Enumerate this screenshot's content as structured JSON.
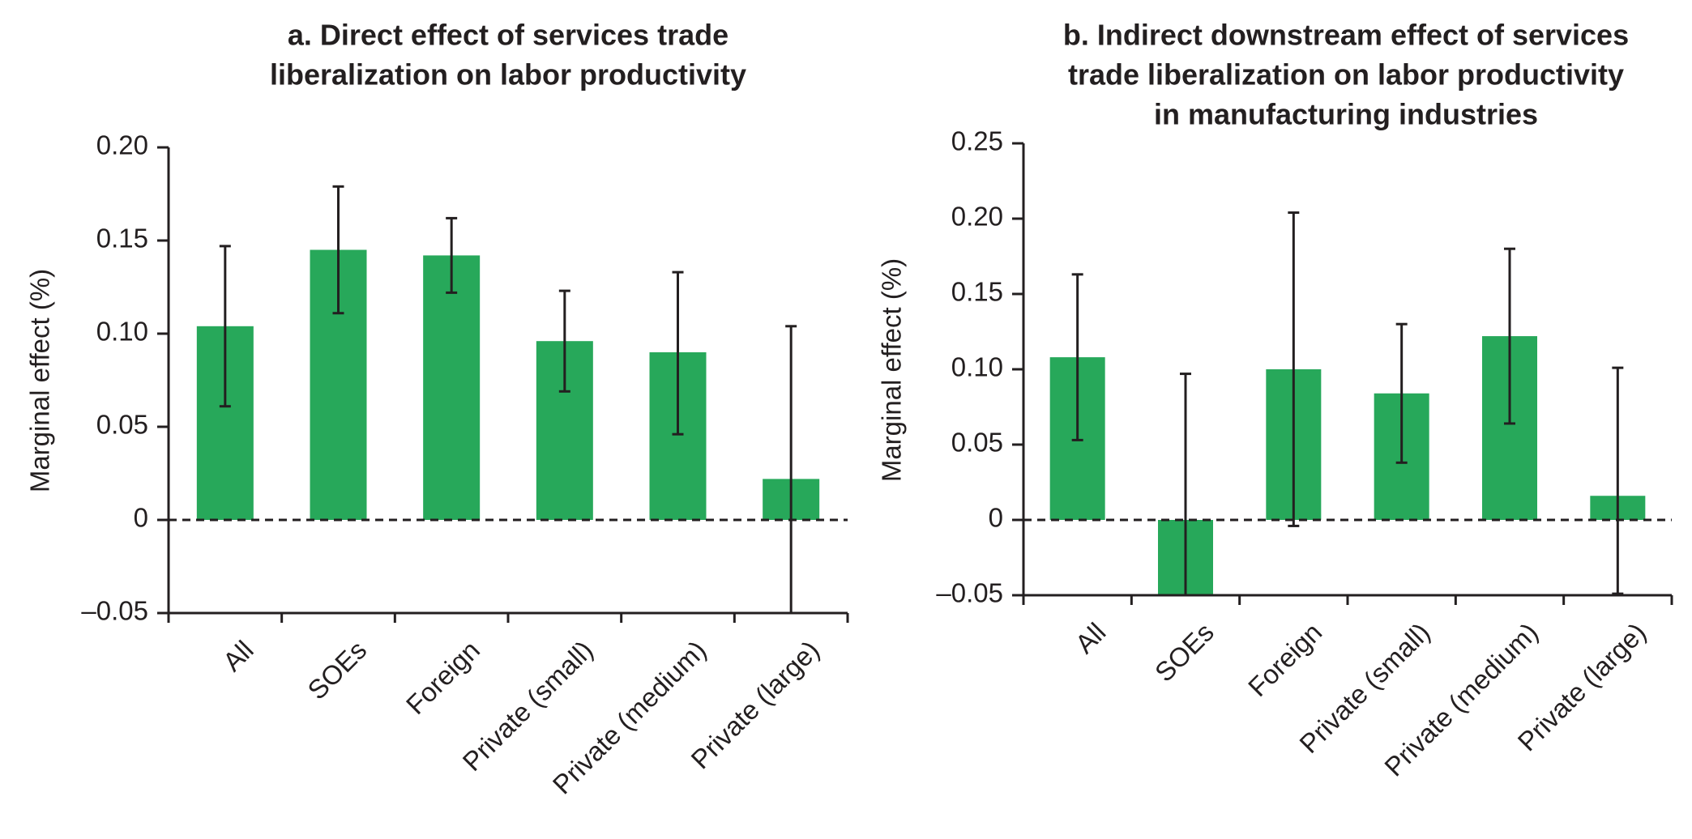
{
  "colors": {
    "bar": "#27a85a",
    "axis": "#231f20",
    "errorbar": "#231f20"
  },
  "chart_data": [
    {
      "type": "bar",
      "title_lines": [
        "a. Direct effect of services trade",
        "liberalization on labor productivity"
      ],
      "categories": [
        "All",
        "SOEs",
        "Foreign",
        "Private (small)",
        "Private (medium)",
        "Private (large)"
      ],
      "values": [
        0.104,
        0.145,
        0.142,
        0.096,
        0.09,
        0.022
      ],
      "error_low": [
        0.061,
        0.111,
        0.122,
        0.069,
        0.046,
        -0.05
      ],
      "error_high": [
        0.147,
        0.179,
        0.162,
        0.123,
        0.133,
        0.104
      ],
      "ylabel": "Marginal effect (%)",
      "xlabel": "",
      "ylim": [
        -0.05,
        0.2
      ],
      "yticks": [
        -0.05,
        0,
        0.05,
        0.1,
        0.15,
        0.2
      ],
      "ytick_labels": [
        "–0.05",
        "0",
        "0.05",
        "0.10",
        "0.15",
        "0.20"
      ],
      "zero_line": "dashed"
    },
    {
      "type": "bar",
      "title_lines": [
        "b. Indirect downstream effect of services",
        "trade liberalization on labor productivity",
        "in manufacturing industries"
      ],
      "categories": [
        "All",
        "SOEs",
        "Foreign",
        "Private (small)",
        "Private (medium)",
        "Private (large)"
      ],
      "values": [
        0.108,
        -0.05,
        0.1,
        0.084,
        0.122,
        0.016
      ],
      "error_low": [
        0.053,
        -0.05,
        -0.004,
        0.038,
        0.064,
        -0.049
      ],
      "error_high": [
        0.163,
        0.097,
        0.204,
        0.13,
        0.18,
        0.101
      ],
      "ylabel": "Marginal effect (%)",
      "xlabel": "",
      "ylim": [
        -0.05,
        0.25
      ],
      "yticks": [
        -0.05,
        0,
        0.05,
        0.1,
        0.15,
        0.2,
        0.25
      ],
      "ytick_labels": [
        "–0.05",
        "0",
        "0.05",
        "0.10",
        "0.15",
        "0.20",
        "0.25"
      ],
      "zero_line": "dashed"
    }
  ]
}
